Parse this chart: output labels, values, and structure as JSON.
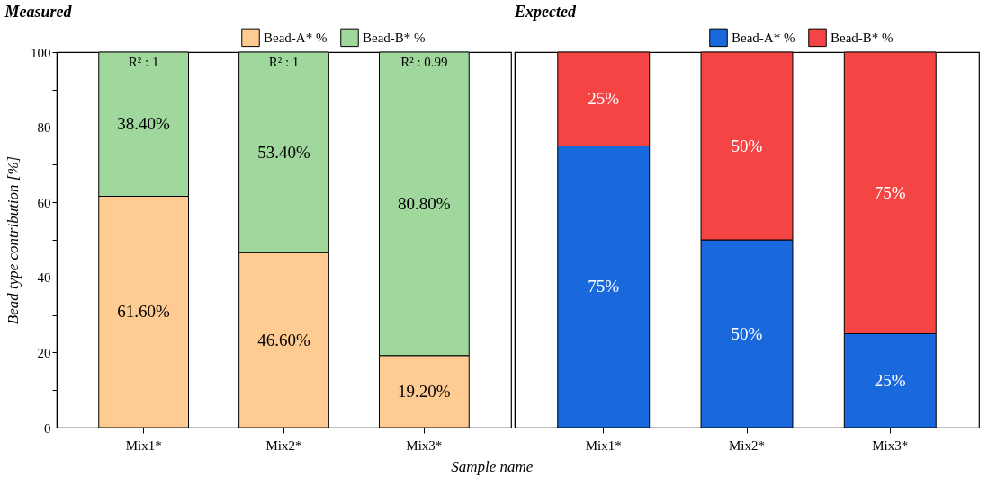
{
  "chart_data": [
    {
      "type": "bar",
      "title": "Measured",
      "ylabel": "Bead type contribution [%]",
      "xlabel": "Sample name",
      "categories": [
        "Mix1*",
        "Mix2*",
        "Mix3*"
      ],
      "stacked": true,
      "legend": "top",
      "grid": false,
      "series": [
        {
          "name": "Bead-A* %",
          "color": "#fecb92",
          "values": [
            61.6,
            46.6,
            19.2
          ],
          "value_labels": [
            "61.60%",
            "46.60%",
            "19.20%"
          ]
        },
        {
          "name": "Bead-B* %",
          "color": "#9fd79d",
          "values": [
            38.4,
            53.4,
            80.8
          ],
          "value_labels": [
            "38.40%",
            "53.40%",
            "80.80%"
          ]
        }
      ],
      "ylim": [
        0,
        100
      ],
      "yticks": [
        0,
        {
          "value": 10,
          "label": null
        },
        20,
        {
          "value": 30,
          "label": null
        },
        40,
        {
          "value": 50,
          "label": null
        },
        60,
        {
          "value": 70,
          "label": null
        },
        80,
        {
          "value": 90,
          "label": null
        },
        100
      ],
      "annotations": [
        "R² : 1",
        "R² : 1",
        "R² : 0.99"
      ]
    },
    {
      "type": "bar",
      "title": "Expected",
      "categories": [
        "Mix1*",
        "Mix2*",
        "Mix3*"
      ],
      "stacked": true,
      "legend": "top",
      "grid": false,
      "tick_labels": "x",
      "series": [
        {
          "name": "Bead-A* %",
          "color": "#1a69dc",
          "values": [
            75,
            50,
            25
          ],
          "value_labels": [
            "75%",
            "50%",
            "25%"
          ]
        },
        {
          "name": "Bead-B* %",
          "color": "#f44444",
          "values": [
            25,
            50,
            75
          ],
          "value_labels": [
            "25%",
            "50%",
            "75%"
          ]
        }
      ],
      "ylim": [
        0,
        100
      ]
    }
  ]
}
